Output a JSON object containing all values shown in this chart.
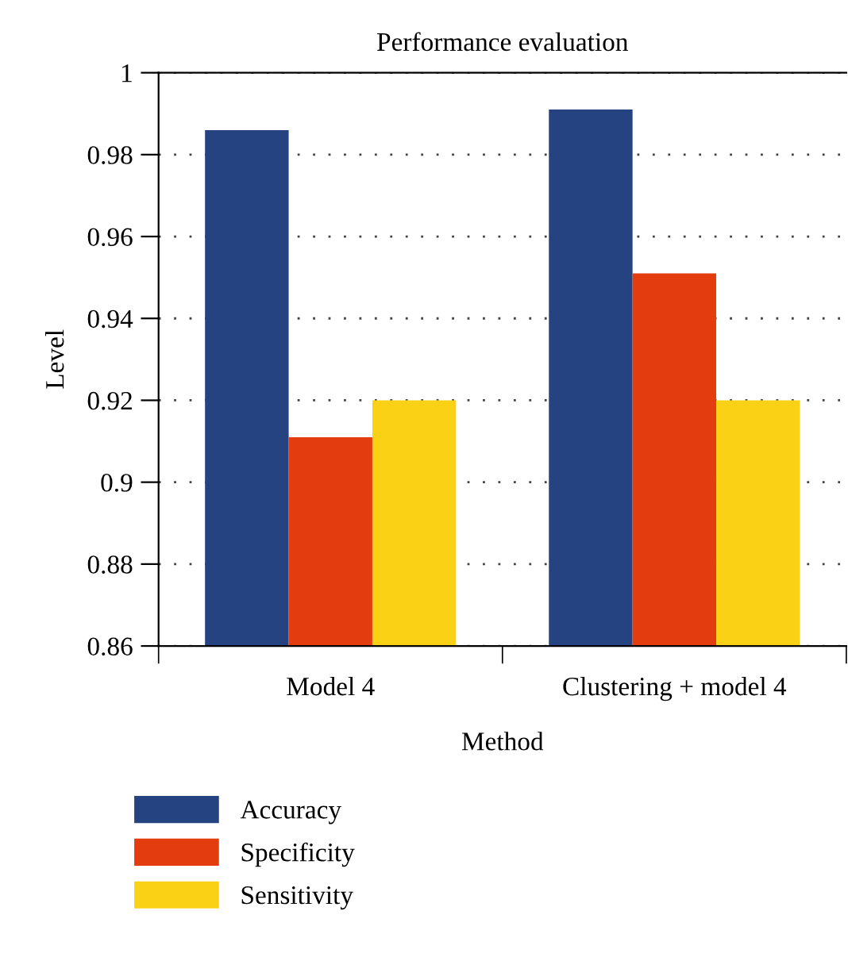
{
  "chart_data": {
    "type": "bar",
    "title": "Performance evaluation",
    "xlabel": "Method",
    "ylabel": "Level",
    "categories": [
      "Model 4",
      "Clustering + model 4"
    ],
    "series": [
      {
        "name": "Accuracy",
        "color": "#254281",
        "values": [
          0.986,
          0.991
        ]
      },
      {
        "name": "Specificity",
        "color": "#e33c0e",
        "values": [
          0.911,
          0.951
        ]
      },
      {
        "name": "Sensitivity",
        "color": "#fad115",
        "values": [
          0.92,
          0.92
        ]
      }
    ],
    "ylim": [
      0.86,
      1
    ],
    "yticks": [
      0.86,
      0.88,
      0.9,
      0.92,
      0.94,
      0.96,
      0.98,
      1
    ],
    "grid": "y",
    "legend": "bottom left"
  }
}
